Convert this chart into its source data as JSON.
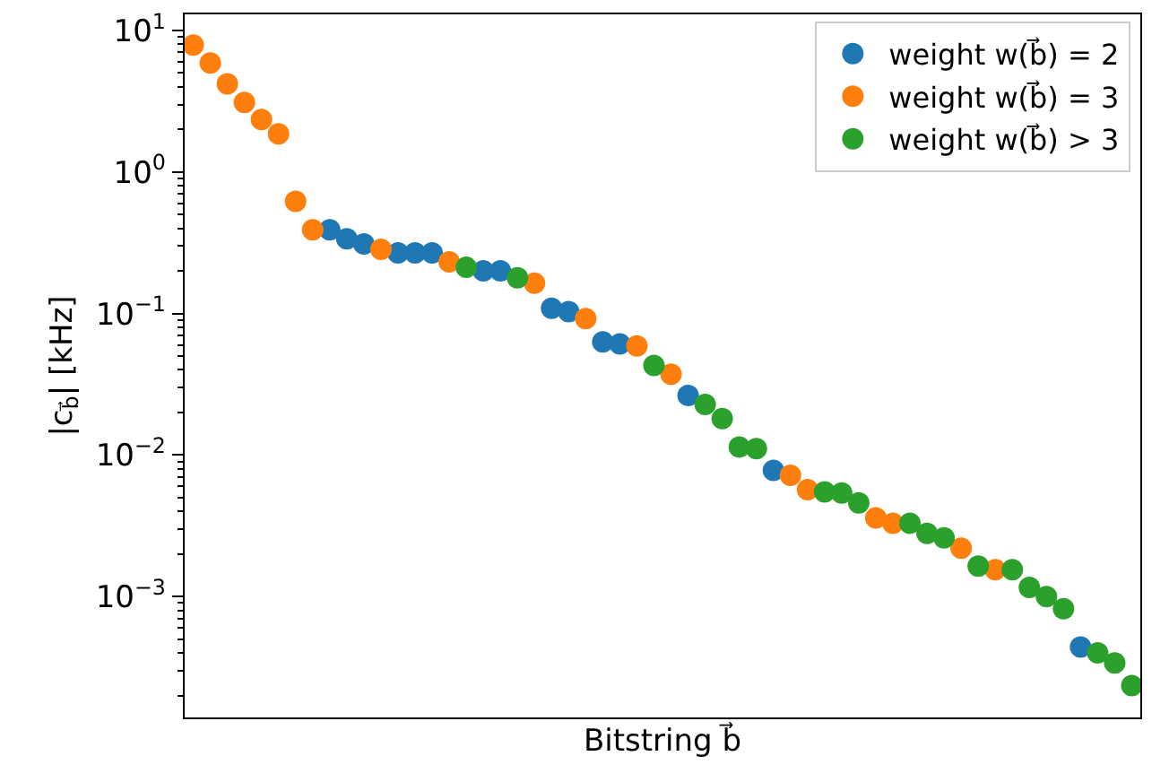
{
  "chart_data": {
    "type": "scatter",
    "xlabel": "Bitstring b⃗",
    "ylabel": "|c$_{b⃗}$| [kHz]",
    "categories": [
      null,
      null,
      null,
      null,
      null,
      null,
      null,
      null,
      null,
      null,
      null,
      null,
      null,
      null,
      null,
      null,
      null,
      null,
      null,
      null,
      null,
      null,
      null,
      null,
      null,
      null,
      null,
      null,
      null,
      null,
      null,
      null,
      null,
      null,
      null,
      null,
      null,
      null,
      null,
      null,
      null,
      null,
      null,
      null,
      null,
      null,
      null,
      null,
      null,
      null,
      null,
      null,
      null,
      null,
      null,
      null
    ],
    "series": [
      {
        "name": "weight w(b⃗) = 2",
        "color": "#1f77b4",
        "values": [
          null,
          null,
          null,
          null,
          null,
          null,
          null,
          null,
          0.39,
          0.337,
          0.31,
          null,
          0.268,
          0.268,
          0.268,
          null,
          null,
          0.2,
          0.2,
          null,
          null,
          0.109,
          0.103,
          null,
          0.063,
          0.061,
          null,
          null,
          null,
          0.0264,
          null,
          null,
          null,
          null,
          0.0078,
          null,
          null,
          null,
          null,
          null,
          null,
          null,
          null,
          null,
          null,
          null,
          null,
          null,
          null,
          null,
          null,
          null,
          0.00044,
          null,
          null,
          null
        ]
      },
      {
        "name": "weight w(b⃗) = 3",
        "color": "#ff7f0e",
        "values": [
          7.9,
          5.9,
          4.2,
          3.1,
          2.35,
          1.86,
          0.62,
          0.39,
          null,
          null,
          null,
          0.284,
          null,
          null,
          null,
          0.232,
          null,
          null,
          null,
          null,
          0.164,
          null,
          null,
          0.092,
          null,
          null,
          0.059,
          null,
          0.0373,
          null,
          null,
          null,
          null,
          null,
          null,
          0.0072,
          0.0057,
          null,
          null,
          null,
          0.0036,
          0.0033,
          null,
          null,
          null,
          0.0022,
          null,
          0.00155,
          null,
          null,
          null,
          null,
          null,
          null,
          null,
          null
        ]
      },
      {
        "name": "weight w(b⃗) > 3",
        "color": "#2ca02c",
        "values": [
          null,
          null,
          null,
          null,
          null,
          null,
          null,
          null,
          null,
          null,
          null,
          null,
          null,
          null,
          null,
          null,
          0.212,
          null,
          null,
          0.179,
          null,
          null,
          null,
          null,
          null,
          null,
          null,
          0.043,
          null,
          null,
          0.0228,
          0.0181,
          0.0114,
          0.0111,
          null,
          null,
          null,
          0.0055,
          0.0054,
          0.0046,
          null,
          null,
          0.0033,
          0.0028,
          0.0026,
          null,
          0.00164,
          null,
          0.00155,
          0.00116,
          0.001,
          0.00082,
          null,
          0.0004,
          0.00034,
          0.000235
        ]
      }
    ],
    "log": "y",
    "ylim": [
      0.00014,
      13
    ],
    "yticks": [
      {
        "value": 0.001,
        "label": "10$^{−3}$"
      },
      {
        "value": 0.01,
        "label": "10$^{−2}$"
      },
      {
        "value": 0.1,
        "label": "10$^{−1}$"
      },
      {
        "value": 1,
        "label": "10$^{0}$"
      },
      {
        "value": 10,
        "label": "10$^{1}$"
      }
    ],
    "tick_labels": "y",
    "grid": false,
    "legend": "top right",
    "marker": "circle"
  }
}
